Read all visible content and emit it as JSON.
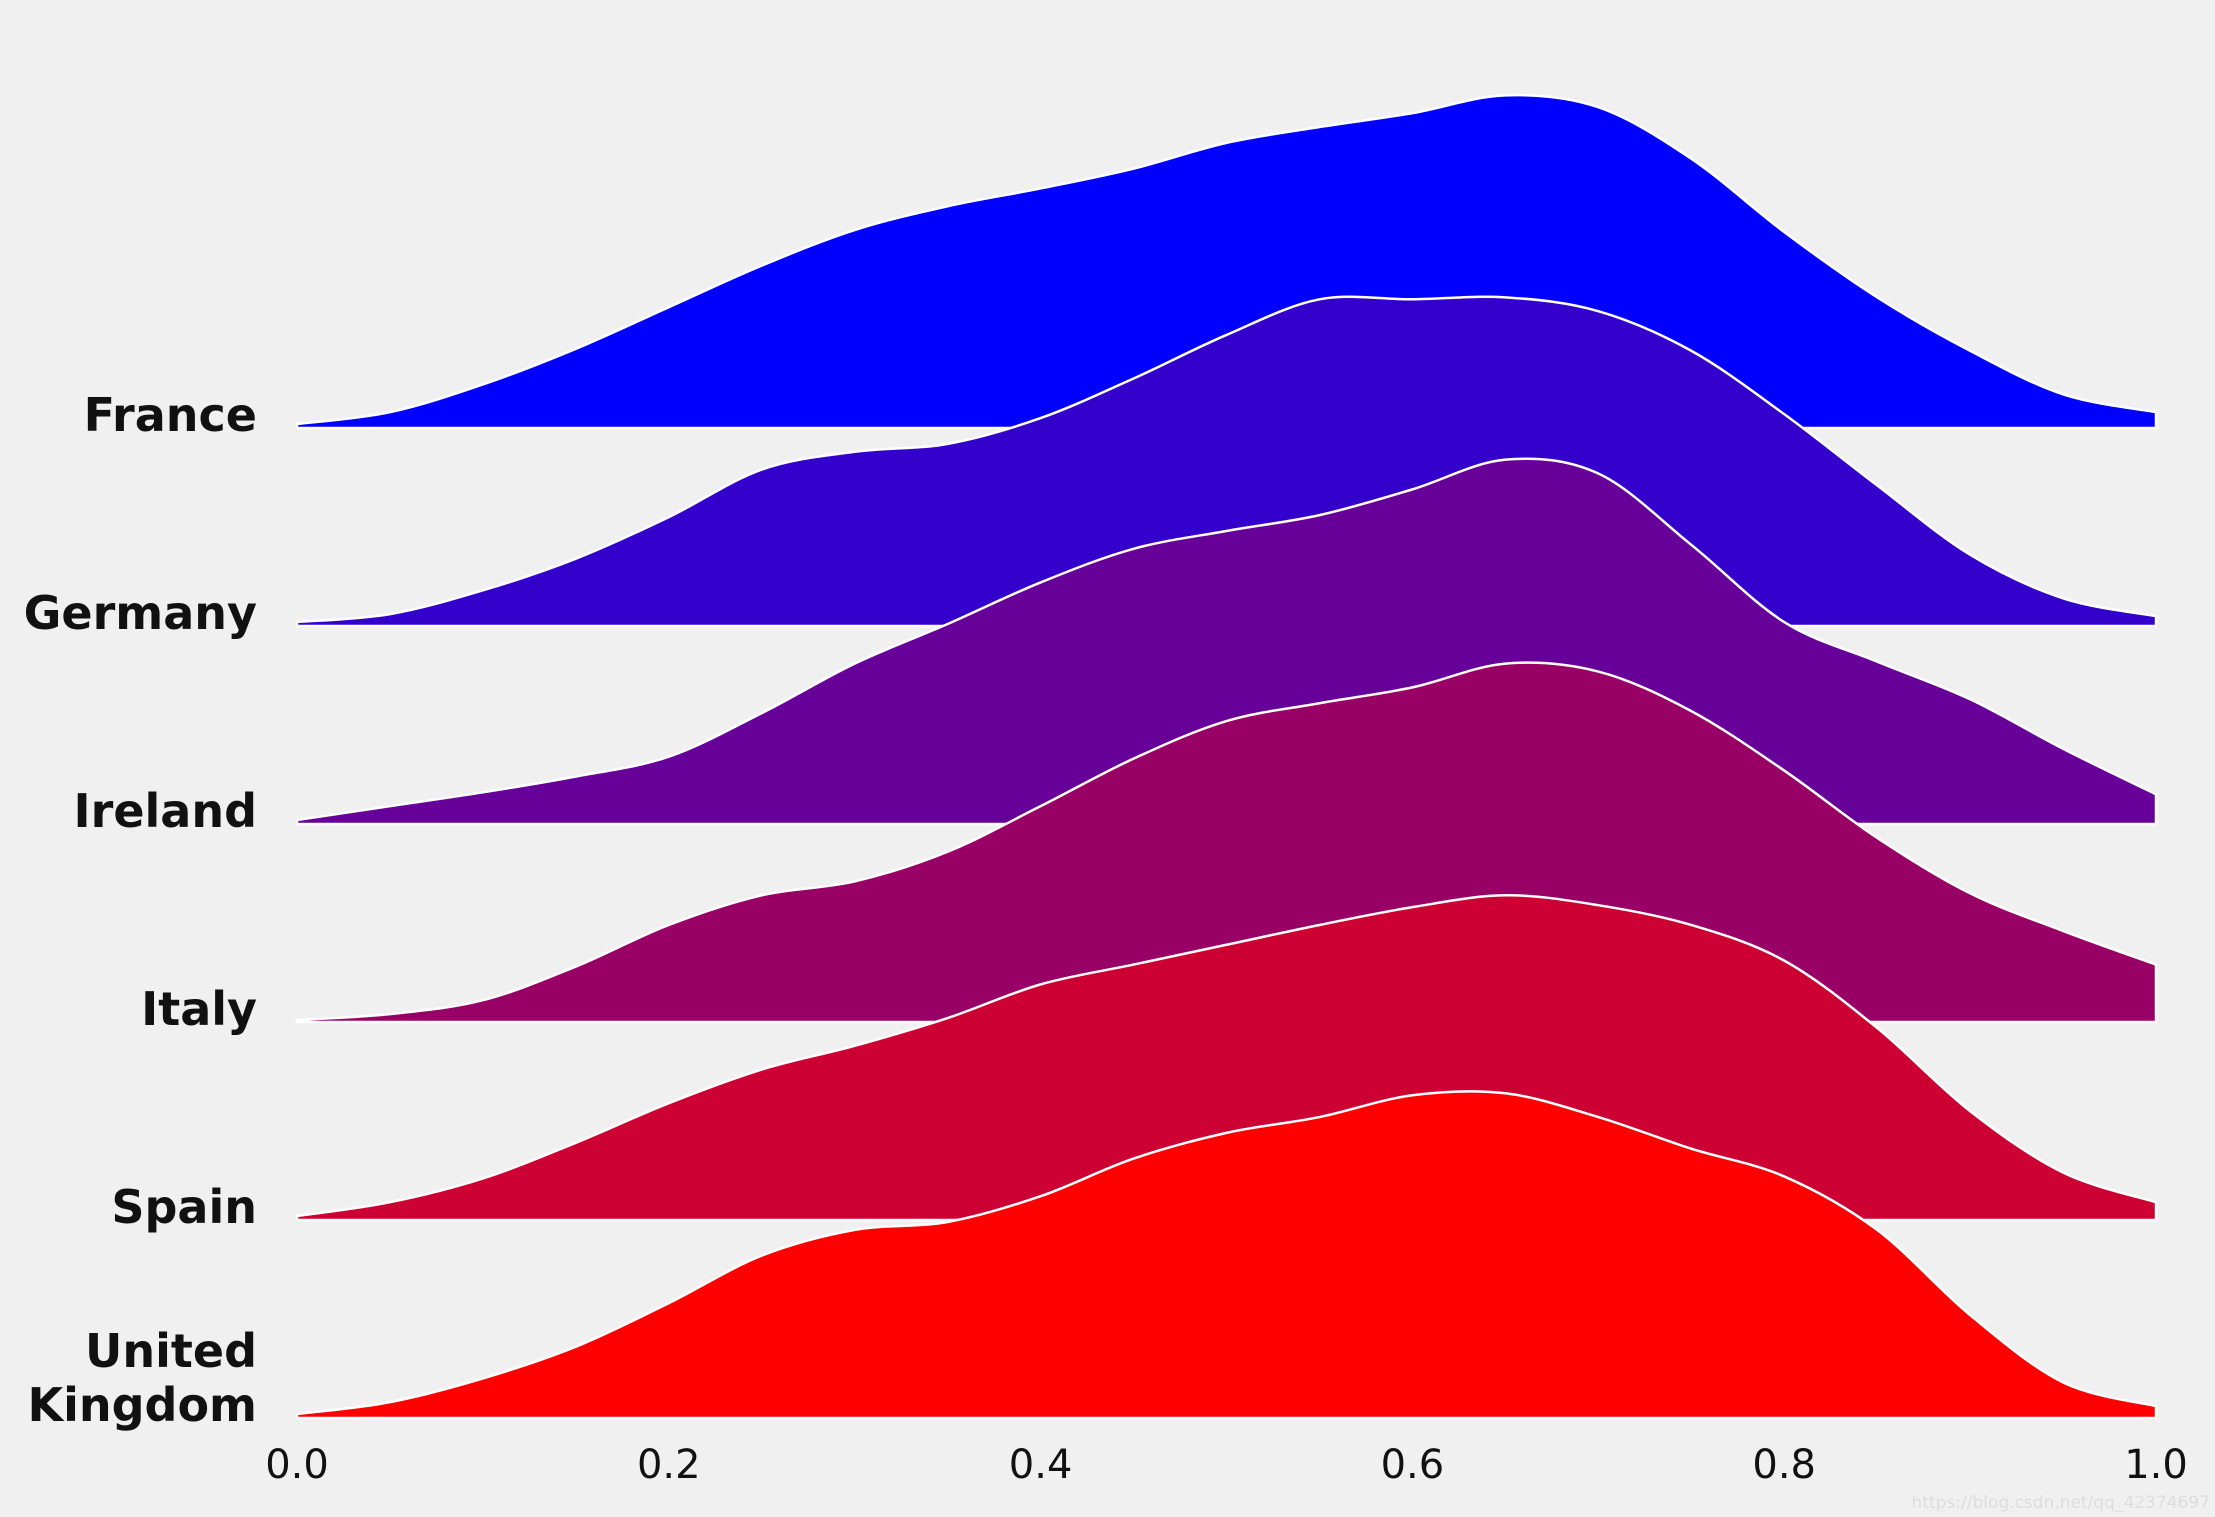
{
  "chart_data": {
    "type": "ridgeline",
    "x": [
      0,
      0.05,
      0.1,
      0.15,
      0.2,
      0.25,
      0.3,
      0.35,
      0.4,
      0.45,
      0.5,
      0.55,
      0.6,
      0.65,
      0.7,
      0.75,
      0.8,
      0.85,
      0.9,
      0.95,
      1
    ],
    "xlim": [
      0,
      1
    ],
    "xticks": [
      {
        "value": 0,
        "label": "0.0"
      },
      0.2,
      0.4,
      0.6,
      0.8,
      {
        "value": 1,
        "label": "1.0"
      }
    ],
    "series": [
      {
        "name": "France",
        "color": "#0000ff",
        "values": [
          0.02,
          0.08,
          0.22,
          0.4,
          0.61,
          0.82,
          1.0,
          1.12,
          1.21,
          1.31,
          1.44,
          1.52,
          1.59,
          1.68,
          1.62,
          1.36,
          0.99,
          0.66,
          0.39,
          0.17,
          0.08
        ]
      },
      {
        "name": "Germany",
        "color": "#3300cc",
        "values": [
          0.02,
          0.06,
          0.18,
          0.34,
          0.55,
          0.79,
          0.88,
          0.92,
          1.05,
          1.25,
          1.47,
          1.65,
          1.65,
          1.66,
          1.59,
          1.39,
          1.07,
          0.71,
          0.36,
          0.14,
          0.05
        ]
      },
      {
        "name": "Ireland",
        "color": "#660099",
        "values": [
          0.02,
          0.09,
          0.16,
          0.24,
          0.34,
          0.56,
          0.81,
          1.01,
          1.22,
          1.39,
          1.48,
          1.56,
          1.69,
          1.84,
          1.77,
          1.41,
          1.02,
          0.82,
          0.63,
          0.38,
          0.15
        ]
      },
      {
        "name": "Italy",
        "color": "#990066",
        "values": [
          0.01,
          0.04,
          0.11,
          0.28,
          0.49,
          0.64,
          0.71,
          0.86,
          1.09,
          1.33,
          1.52,
          1.61,
          1.69,
          1.81,
          1.77,
          1.57,
          1.27,
          0.93,
          0.65,
          0.46,
          0.29
        ]
      },
      {
        "name": "Spain",
        "color": "#cc0033",
        "values": [
          0.02,
          0.09,
          0.21,
          0.39,
          0.59,
          0.76,
          0.88,
          1.02,
          1.19,
          1.29,
          1.39,
          1.49,
          1.58,
          1.64,
          1.59,
          1.49,
          1.31,
          0.97,
          0.55,
          0.24,
          0.09
        ]
      },
      {
        "name": "United Kingdom",
        "color": "#ff0000",
        "values": [
          0.02,
          0.08,
          0.2,
          0.36,
          0.58,
          0.82,
          0.95,
          0.99,
          1.12,
          1.31,
          1.44,
          1.52,
          1.63,
          1.64,
          1.52,
          1.36,
          1.22,
          0.95,
          0.52,
          0.18,
          0.06
        ]
      }
    ],
    "watermark": "https://blog.csdn.net/qq_42374697"
  }
}
